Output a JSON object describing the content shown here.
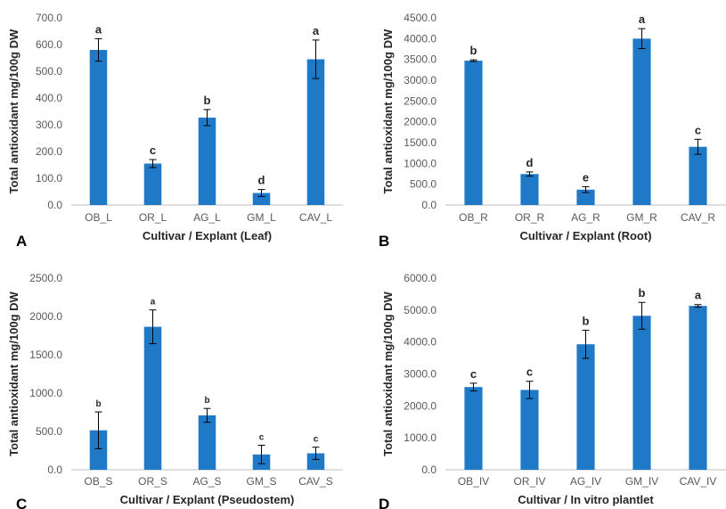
{
  "colors": {
    "bar": "#2079c7",
    "axis": "#bfbfbf",
    "text": "#262626",
    "tick_text": "#595959",
    "error_bar": "#000000"
  },
  "chart_data": [
    {
      "panel": "A",
      "type": "bar",
      "xlabel": "Cultivar / Explant (Leaf)",
      "ylabel": "Total antioxidant mg/100g DW",
      "ylim": [
        0,
        700
      ],
      "yticks": [
        "0.0",
        "100.0",
        "200.0",
        "300.0",
        "400.0",
        "500.0",
        "600.0",
        "700.0"
      ],
      "categories": [
        "OB_L",
        "OR_L",
        "AG_L",
        "GM_L",
        "CAV_L"
      ],
      "values": [
        580,
        155,
        327,
        45,
        545
      ],
      "errors": [
        42,
        15,
        30,
        13,
        72
      ],
      "significance": [
        "a",
        "c",
        "b",
        "d",
        "a"
      ]
    },
    {
      "panel": "B",
      "type": "bar",
      "xlabel": "Cultivar / Explant (Root)",
      "ylabel": "Total antioxidant mg/100g DW",
      "ylim": [
        0,
        4500
      ],
      "yticks": [
        "0.0",
        "500.0",
        "1000.0",
        "1500.0",
        "2000.0",
        "2500.0",
        "3000.0",
        "3500.0",
        "4000.0",
        "4500.0"
      ],
      "categories": [
        "OB_R",
        "OR_R",
        "AG_R",
        "GM_R",
        "CAV_R"
      ],
      "values": [
        3470,
        745,
        370,
        4000,
        1400
      ],
      "errors": [
        20,
        50,
        70,
        240,
        180
      ],
      "significance": [
        "b",
        "d",
        "e",
        "a",
        "c"
      ]
    },
    {
      "panel": "C",
      "type": "bar",
      "xlabel": "Cultivar / Explant (Pseudostem)",
      "ylabel": "Total antioxidant mg/100g DW",
      "ylim": [
        0,
        2500
      ],
      "yticks": [
        "0.0",
        "500.0",
        "1000.0",
        "1500.0",
        "2000.0",
        "2500.0"
      ],
      "categories": [
        "OB_S",
        "OR_S",
        "AG_S",
        "GM_S",
        "CAV_S"
      ],
      "values": [
        515,
        1865,
        710,
        200,
        215
      ],
      "errors": [
        240,
        220,
        90,
        120,
        80
      ],
      "significance": [
        "b",
        "a",
        "b",
        "c",
        "c"
      ]
    },
    {
      "panel": "D",
      "type": "bar",
      "xlabel": "Cultivar / In vitro plantlet",
      "ylabel": "Total antioxidant mg/100g DW",
      "ylim": [
        0,
        6000
      ],
      "yticks": [
        "0.0",
        "1000.0",
        "2000.0",
        "3000.0",
        "4000.0",
        "5000.0",
        "6000.0"
      ],
      "categories": [
        "OB_IV",
        "OR_IV",
        "AG_IV",
        "GM_IV",
        "CAV_IV"
      ],
      "values": [
        2590,
        2500,
        3930,
        4820,
        5130
      ],
      "errors": [
        120,
        270,
        440,
        420,
        40
      ],
      "significance": [
        "c",
        "c",
        "b",
        "b",
        "a"
      ]
    }
  ]
}
